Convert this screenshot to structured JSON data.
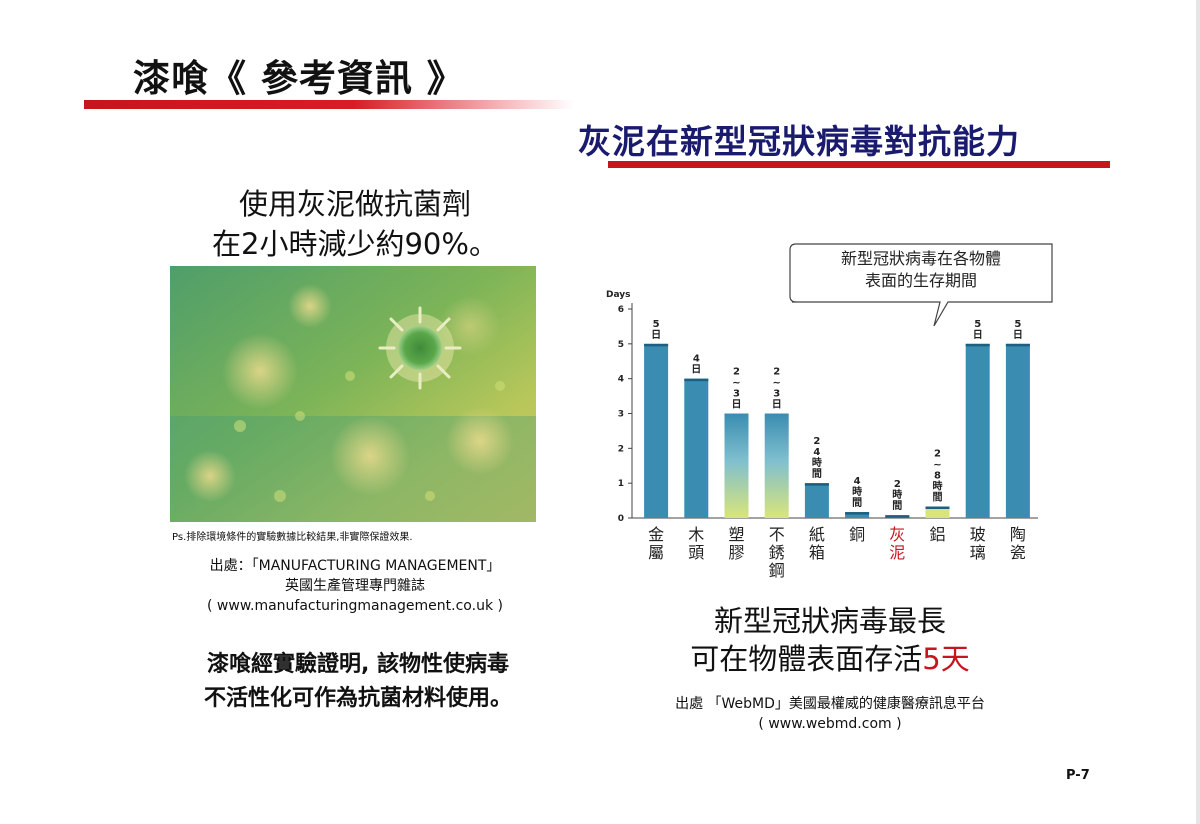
{
  "title": "漆喰《 參考資訊 》",
  "subtitle": "灰泥在新型冠狀病毒對抗能力",
  "left_heading": [
    "使用灰泥做抗菌劑",
    "在2小時減少約90%。"
  ],
  "ps_note": "Ps.排除環境條件的實驗數據比較結果,非實際保證效果.",
  "source_left": [
    "出處：「MANUFACTURING MANAGEMENT」",
    "英國生產管理專門雜誌",
    "( www.manufacturingmanagement.co.uk )"
  ],
  "conclusion_left": [
    "漆喰經實驗證明, 該物性使病毒",
    "不活性化可作為抗菌材料使用。"
  ],
  "chart_data": {
    "type": "bar",
    "ylabel": "Days",
    "ylim": [
      0,
      6
    ],
    "yticks": [
      0,
      1,
      2,
      3,
      4,
      5,
      6
    ],
    "callout": [
      "新型冠狀病毒在各物體",
      "表面的生存期間"
    ],
    "categories": [
      "金屬",
      "木頭",
      "塑膠",
      "不銹鋼",
      "紙箱",
      "銅",
      "灰泥",
      "鋁",
      "玻璃",
      "陶瓷"
    ],
    "values": [
      5,
      4,
      3,
      3,
      1,
      0.17,
      0.08,
      0.33,
      5,
      5
    ],
    "range_low": [
      null,
      null,
      2,
      2,
      null,
      null,
      null,
      0.08,
      null,
      null
    ],
    "data_labels": [
      "5日",
      "4日",
      "2~3日",
      "2~3日",
      "24時間",
      "4時間",
      "2時間",
      "2~8時間",
      "5日",
      "5日"
    ],
    "colors": {
      "bar": "#3a8db0",
      "bar_light": "#7fbfcf",
      "range_fill": "#d9e57a",
      "highlight_label": "#c8141e"
    }
  },
  "chart_headline": {
    "line1": "新型冠狀病毒最長",
    "line2_prefix": "可在物體表面存活",
    "line2_value": "5天"
  },
  "source_right": [
    "出處  「WebMD」美國最權威的健康醫療訊息平台",
    "( www.webmd.com )"
  ],
  "page_number": "P-7"
}
